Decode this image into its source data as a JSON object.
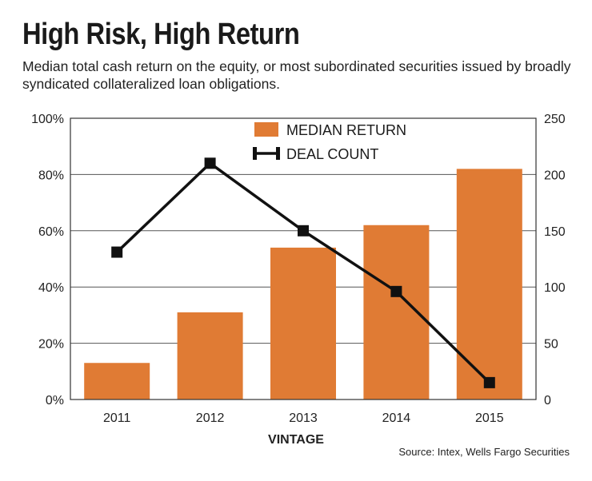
{
  "chart_data": {
    "type": "bar+line",
    "title": "High Risk, High Return",
    "subtitle": "Median total cash return on the equity, or most subordinated securities issued by broadly syndicated collateralized loan obligations.",
    "categories": [
      "2011",
      "2012",
      "2013",
      "2014",
      "2015"
    ],
    "xlabel": "VINTAGE",
    "series": [
      {
        "name": "MEDIAN RETURN",
        "kind": "bar",
        "axis": "left",
        "color": "#e07b34",
        "values": [
          13,
          31,
          54,
          62,
          82
        ]
      },
      {
        "name": "DEAL COUNT",
        "kind": "line",
        "axis": "right",
        "color": "#111111",
        "values": [
          131,
          210,
          150,
          96,
          15
        ]
      }
    ],
    "y_left": {
      "ylim": [
        0,
        100
      ],
      "ticks": [
        0,
        20,
        40,
        60,
        80,
        100
      ],
      "tick_labels": [
        "0%",
        "20%",
        "40%",
        "60%",
        "80%",
        "100%"
      ]
    },
    "y_right": {
      "ylim": [
        0,
        250
      ],
      "ticks": [
        0,
        50,
        100,
        150,
        200,
        250
      ],
      "tick_labels": [
        "0",
        "50",
        "100",
        "150",
        "200",
        "250"
      ]
    },
    "grid": true,
    "legend": "top-center",
    "source": "Source: Intex, Wells Fargo Securities"
  }
}
